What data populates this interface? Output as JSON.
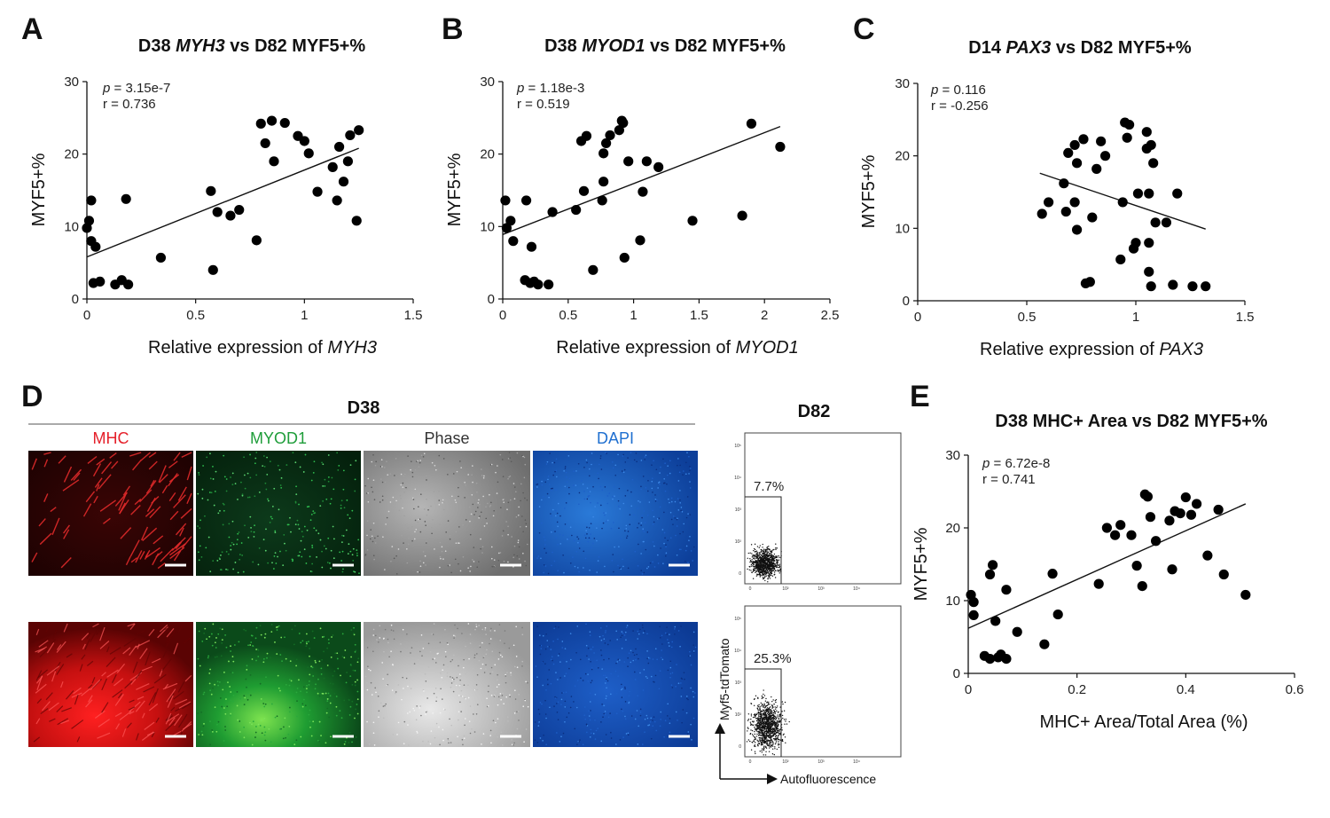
{
  "panels": {
    "A": "A",
    "B": "B",
    "C": "C",
    "D": "D",
    "E": "E"
  },
  "chart_data": [
    {
      "id": "A",
      "type": "scatter",
      "title_parts": [
        "D38 ",
        "MYH3",
        " vs D82 MYF5+%"
      ],
      "xlabel_parts": [
        "Relative expression of ",
        "MYH3"
      ],
      "ylabel": "MYF5+%",
      "xlim": [
        0,
        1.5
      ],
      "ylim": [
        0,
        30
      ],
      "xticks": [
        "0",
        "0.5",
        "1",
        "1.5"
      ],
      "xtick_values": [
        0,
        0.5,
        1,
        1.5
      ],
      "yticks": [
        "0",
        "10",
        "20",
        "30"
      ],
      "ytick_values": [
        0,
        10,
        20,
        30
      ],
      "stat_p": "= 3.15e-7",
      "stat_r": "r = 0.736",
      "fit": [
        [
          0,
          5.8
        ],
        [
          1.25,
          20.8
        ]
      ],
      "points": [
        [
          0,
          9.8
        ],
        [
          0.01,
          10.8
        ],
        [
          0.02,
          13.6
        ],
        [
          0.02,
          8
        ],
        [
          0.04,
          7.2
        ],
        [
          0.03,
          2.2
        ],
        [
          0.06,
          2.4
        ],
        [
          0.13,
          2
        ],
        [
          0.16,
          2.6
        ],
        [
          0.19,
          2
        ],
        [
          0.18,
          13.8
        ],
        [
          0.34,
          5.7
        ],
        [
          0.57,
          14.9
        ],
        [
          0.58,
          4
        ],
        [
          0.6,
          12
        ],
        [
          0.66,
          11.5
        ],
        [
          0.7,
          12.3
        ],
        [
          0.78,
          8.1
        ],
        [
          0.8,
          24.2
        ],
        [
          0.82,
          21.5
        ],
        [
          0.85,
          24.6
        ],
        [
          0.86,
          19
        ],
        [
          0.91,
          24.3
        ],
        [
          0.97,
          22.5
        ],
        [
          1.0,
          21.8
        ],
        [
          1.02,
          20.1
        ],
        [
          1.06,
          14.8
        ],
        [
          1.13,
          18.2
        ],
        [
          1.15,
          13.6
        ],
        [
          1.16,
          21
        ],
        [
          1.18,
          16.2
        ],
        [
          1.2,
          19
        ],
        [
          1.21,
          22.6
        ],
        [
          1.24,
          10.8
        ],
        [
          1.25,
          23.3
        ]
      ]
    },
    {
      "id": "B",
      "type": "scatter",
      "title_parts": [
        "D38 ",
        "MYOD1",
        " vs D82 MYF5+%"
      ],
      "xlabel_parts": [
        "Relative expression of ",
        "MYOD1"
      ],
      "ylabel": "MYF5+%",
      "xlim": [
        0,
        2.5
      ],
      "ylim": [
        0,
        30
      ],
      "xticks": [
        "0",
        "0.5",
        "1",
        "1.5",
        "2",
        "2.5"
      ],
      "xtick_values": [
        0,
        0.5,
        1,
        1.5,
        2,
        2.5
      ],
      "yticks": [
        "0",
        "10",
        "20",
        "30"
      ],
      "ytick_values": [
        0,
        10,
        20,
        30
      ],
      "stat_p": "= 1.18e-3",
      "stat_r": "r = 0.519",
      "fit": [
        [
          0,
          8.9
        ],
        [
          2.12,
          23.8
        ]
      ],
      "points": [
        [
          0.02,
          13.6
        ],
        [
          0.03,
          9.8
        ],
        [
          0.06,
          10.8
        ],
        [
          0.08,
          8
        ],
        [
          0.17,
          2.6
        ],
        [
          0.18,
          13.6
        ],
        [
          0.21,
          2.2
        ],
        [
          0.22,
          7.2
        ],
        [
          0.24,
          2.4
        ],
        [
          0.27,
          2
        ],
        [
          0.35,
          2
        ],
        [
          0.38,
          12
        ],
        [
          0.56,
          12.3
        ],
        [
          0.6,
          21.8
        ],
        [
          0.62,
          14.9
        ],
        [
          0.64,
          22.5
        ],
        [
          0.69,
          4
        ],
        [
          0.76,
          13.6
        ],
        [
          0.77,
          16.2
        ],
        [
          0.77,
          20.1
        ],
        [
          0.79,
          21.5
        ],
        [
          0.82,
          22.6
        ],
        [
          0.89,
          23.3
        ],
        [
          0.91,
          24.6
        ],
        [
          0.92,
          24.3
        ],
        [
          0.93,
          5.7
        ],
        [
          0.96,
          19
        ],
        [
          1.05,
          8.1
        ],
        [
          1.07,
          14.8
        ],
        [
          1.1,
          19
        ],
        [
          1.19,
          18.2
        ],
        [
          1.45,
          10.8
        ],
        [
          1.83,
          11.5
        ],
        [
          1.9,
          24.2
        ],
        [
          2.12,
          21
        ]
      ]
    },
    {
      "id": "C",
      "type": "scatter",
      "title_parts": [
        "D14 ",
        "PAX3",
        " vs D82 MYF5+%"
      ],
      "xlabel_parts": [
        "Relative expression of ",
        "PAX3"
      ],
      "ylabel": "MYF5+%",
      "xlim": [
        0,
        1.5
      ],
      "ylim": [
        0,
        30
      ],
      "xticks": [
        "0",
        "0.5",
        "1",
        "1.5"
      ],
      "xtick_values": [
        0,
        0.5,
        1,
        1.5
      ],
      "yticks": [
        "0",
        "10",
        "20",
        "30"
      ],
      "ytick_values": [
        0,
        10,
        20,
        30
      ],
      "stat_p": "= 0.116",
      "stat_r": "r = -0.256",
      "fit": [
        [
          0.56,
          17.6
        ],
        [
          1.32,
          9.9
        ]
      ],
      "points": [
        [
          0.57,
          12
        ],
        [
          0.6,
          13.6
        ],
        [
          0.67,
          16.2
        ],
        [
          0.68,
          12.3
        ],
        [
          0.69,
          20.4
        ],
        [
          0.72,
          13.6
        ],
        [
          0.72,
          21.5
        ],
        [
          0.73,
          19
        ],
        [
          0.73,
          9.8
        ],
        [
          0.76,
          22.3
        ],
        [
          0.77,
          2.4
        ],
        [
          0.79,
          2.6
        ],
        [
          0.8,
          11.5
        ],
        [
          0.82,
          18.2
        ],
        [
          0.84,
          22
        ],
        [
          0.86,
          20
        ],
        [
          0.93,
          5.7
        ],
        [
          0.94,
          13.6
        ],
        [
          0.95,
          24.6
        ],
        [
          0.96,
          22.5
        ],
        [
          0.97,
          24.3
        ],
        [
          0.99,
          7.2
        ],
        [
          1.0,
          8
        ],
        [
          1.01,
          14.8
        ],
        [
          1.05,
          23.3
        ],
        [
          1.05,
          21
        ],
        [
          1.06,
          14.8
        ],
        [
          1.06,
          8
        ],
        [
          1.06,
          4
        ],
        [
          1.07,
          2
        ],
        [
          1.07,
          21.5
        ],
        [
          1.08,
          19
        ],
        [
          1.09,
          10.8
        ],
        [
          1.14,
          10.8
        ],
        [
          1.17,
          2.2
        ],
        [
          1.19,
          14.8
        ],
        [
          1.26,
          2
        ],
        [
          1.32,
          2
        ]
      ]
    },
    {
      "id": "E",
      "type": "scatter",
      "title": "D38 MHC+ Area vs D82 MYF5+%",
      "xlabel": "MHC+ Area/Total Area (%)",
      "ylabel": "MYF5+%",
      "xlim": [
        0,
        0.6
      ],
      "ylim": [
        0,
        30
      ],
      "xticks": [
        "0",
        "0.2",
        "0.4",
        "0.6"
      ],
      "xtick_values": [
        0,
        0.2,
        0.4,
        0.6
      ],
      "yticks": [
        "0",
        "10",
        "20",
        "30"
      ],
      "ytick_values": [
        0,
        10,
        20,
        30
      ],
      "stat_p": "= 6.72e-8",
      "stat_r": "r = 0.741",
      "fit": [
        [
          0,
          6.2
        ],
        [
          0.51,
          23.3
        ]
      ],
      "points": [
        [
          0.005,
          10.8
        ],
        [
          0.01,
          8
        ],
        [
          0.01,
          9.8
        ],
        [
          0.03,
          2.4
        ],
        [
          0.04,
          2
        ],
        [
          0.04,
          13.6
        ],
        [
          0.045,
          14.9
        ],
        [
          0.05,
          7.2
        ],
        [
          0.055,
          2.2
        ],
        [
          0.06,
          2.6
        ],
        [
          0.07,
          11.5
        ],
        [
          0.07,
          2
        ],
        [
          0.09,
          5.7
        ],
        [
          0.14,
          4
        ],
        [
          0.155,
          13.7
        ],
        [
          0.165,
          8.1
        ],
        [
          0.24,
          12.3
        ],
        [
          0.255,
          20
        ],
        [
          0.27,
          19
        ],
        [
          0.28,
          20.4
        ],
        [
          0.3,
          19
        ],
        [
          0.31,
          14.8
        ],
        [
          0.32,
          12
        ],
        [
          0.325,
          24.6
        ],
        [
          0.33,
          24.3
        ],
        [
          0.335,
          21.5
        ],
        [
          0.345,
          18.2
        ],
        [
          0.37,
          21
        ],
        [
          0.375,
          14.3
        ],
        [
          0.38,
          22.3
        ],
        [
          0.39,
          22
        ],
        [
          0.4,
          24.2
        ],
        [
          0.41,
          21.8
        ],
        [
          0.42,
          23.3
        ],
        [
          0.44,
          16.2
        ],
        [
          0.46,
          22.5
        ],
        [
          0.47,
          13.6
        ],
        [
          0.51,
          10.8
        ]
      ]
    }
  ],
  "panelD": {
    "group_label": "D38",
    "flow_label": "D82",
    "channels": [
      {
        "name": "MHC",
        "color": "#e5202a"
      },
      {
        "name": "MYOD1",
        "color": "#1f9d3a"
      },
      {
        "name": "Phase",
        "color": "#333333"
      },
      {
        "name": "DAPI",
        "color": "#1f6fd0"
      }
    ],
    "flow_top_pct": "7.7%",
    "flow_bottom_pct": "25.3%",
    "flow_ylabel": "Myf5-tdTomato",
    "flow_xlabel": "Autofluorescence",
    "flow_axis_ticks": [
      "10⁵",
      "10⁴",
      "10³",
      "10²",
      "0"
    ]
  }
}
